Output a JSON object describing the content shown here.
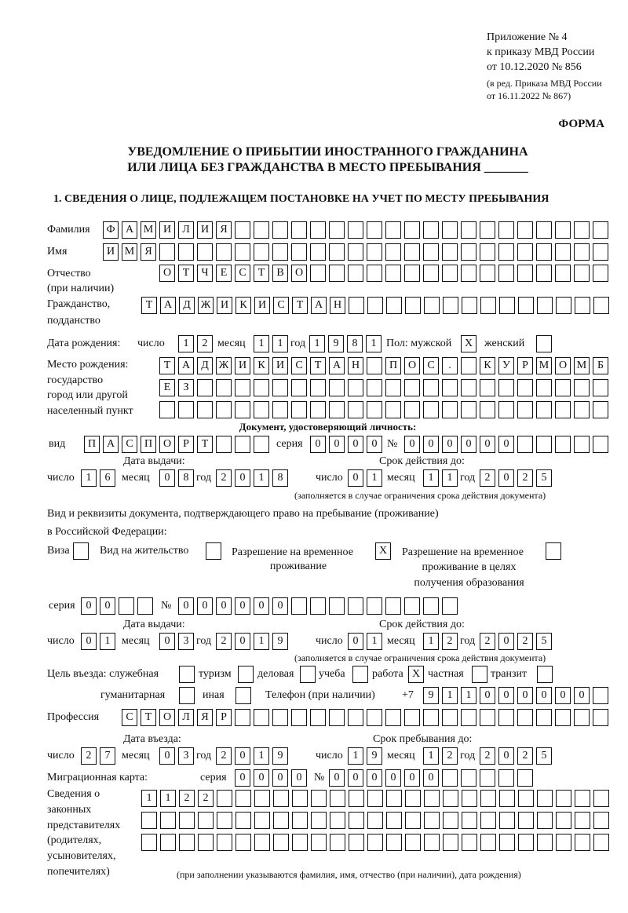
{
  "header": {
    "appendix": "Приложение № 4",
    "order": "к приказу МВД России",
    "order_date": "от 10.12.2020 № 856",
    "revision_1": "(в ред. Приказа МВД России",
    "revision_2": "от 16.11.2022 № 867)",
    "form_label": "ФОРМА",
    "title_1": "УВЕДОМЛЕНИЕ О ПРИБЫТИИ ИНОСТРАННОГО ГРАЖДАНИНА",
    "title_2": "ИЛИ ЛИЦА БЕЗ ГРАЖДАНСТВА В МЕСТО ПРЕБЫВАНИЯ _______",
    "section_1": "1. СВЕДЕНИЯ О ЛИЦЕ, ПОДЛЕЖАЩЕМ ПОСТАНОВКЕ НА УЧЕТ ПО МЕСТУ ПРЕБЫВАНИЯ"
  },
  "labels": {
    "surname": "Фамилия",
    "name": "Имя",
    "patronymic_1": "Отчество",
    "patronymic_2": "(при наличии)",
    "citizenship_1": "Гражданство,",
    "citizenship_2": "подданство",
    "birth_date": "Дата рождения:",
    "day": "число",
    "month": "месяц",
    "year": "год",
    "sex": "Пол: мужской",
    "female": "женский",
    "birthplace_1": "Место рождения:",
    "birthplace_2": "государство",
    "birthplace_3": "город или другой",
    "birthplace_4": "населенный пункт",
    "id_doc": "Документ, удостоверяющий личность:",
    "kind": "вид",
    "series": "серия",
    "number": "№",
    "issue_date": "Дата выдачи:",
    "valid_until": "Срок действия до:",
    "valid_note": "(заполняется в случае ограничения срока действия документа)",
    "stay_doc_1": "Вид и реквизиты документа, подтверждающего право на пребывание (проживание)",
    "stay_doc_2": "в Российской Федерации:",
    "visa": "Виза",
    "residence": "Вид на жительство",
    "trp_1": "Разрешение на временное",
    "trp_2": "проживание",
    "trp_edu_1": "Разрешение на временное",
    "trp_edu_2": "проживание в целях",
    "trp_edu_3": "получения образования",
    "purpose": "Цель въезда: служебная",
    "tourism": "туризм",
    "business": "деловая",
    "study": "учеба",
    "work": "работа",
    "private": "частная",
    "transit": "транзит",
    "humanitarian": "гуманитарная",
    "other": "иная",
    "phone": "Телефон (при наличии)",
    "phone_prefix": "+7",
    "profession": "Профессия",
    "entry_date": "Дата въезда:",
    "stay_until": "Срок пребывания до:",
    "migration_card": "Миграционная карта:",
    "reps_1": "Сведения о",
    "reps_2": "законных",
    "reps_3": "представителях",
    "reps_4": "(родителях,",
    "reps_5": "усыновителях,",
    "reps_6": "попечителях)",
    "reps_note": "(при заполнении указываются фамилия, имя, отчество (при наличии), дата рождения)"
  },
  "fields": {
    "surname": "ФАМИЛИЯ",
    "name": "ИМЯ",
    "patronymic": "ОТЧЕСТВО",
    "citizenship": "ТАДЖИКИСТАН",
    "birth_day": "12",
    "birth_month": "11",
    "birth_year": "1981",
    "sex_male": "X",
    "sex_female": "",
    "birthplace_1": "ТАДЖИКИСТАН ПОС. КУРМОМБ",
    "birthplace_2": "ЕЗ",
    "birthplace_3": "",
    "id_kind": "ПАСПОРТ",
    "id_series": "0000",
    "id_number": "000000",
    "id_issue_day": "16",
    "id_issue_month": "08",
    "id_issue_year": "2018",
    "id_valid_day": "01",
    "id_valid_month": "11",
    "id_valid_year": "2025",
    "doc_visa": "",
    "doc_residence": "",
    "doc_trp": "X",
    "doc_trp_edu": "",
    "doc_series": "00",
    "doc_number": "000000",
    "doc_issue_day": "01",
    "doc_issue_month": "03",
    "doc_issue_year": "2019",
    "doc_valid_day": "01",
    "doc_valid_month": "12",
    "doc_valid_year": "2025",
    "purpose_official": "",
    "purpose_tourism": "",
    "purpose_business": "",
    "purpose_study": "",
    "purpose_work": "X",
    "purpose_private": "",
    "purpose_transit": "",
    "purpose_humanitarian": "",
    "purpose_other": "",
    "phone": "911000000",
    "profession": "СТОЛЯР",
    "entry_day": "27",
    "entry_month": "03",
    "entry_year": "2019",
    "stay_day": "19",
    "stay_month": "12",
    "stay_year": "2025",
    "mc_series": "0000",
    "mc_number": "000000",
    "reps_1": "1122",
    "reps_2": "",
    "reps_3": ""
  }
}
